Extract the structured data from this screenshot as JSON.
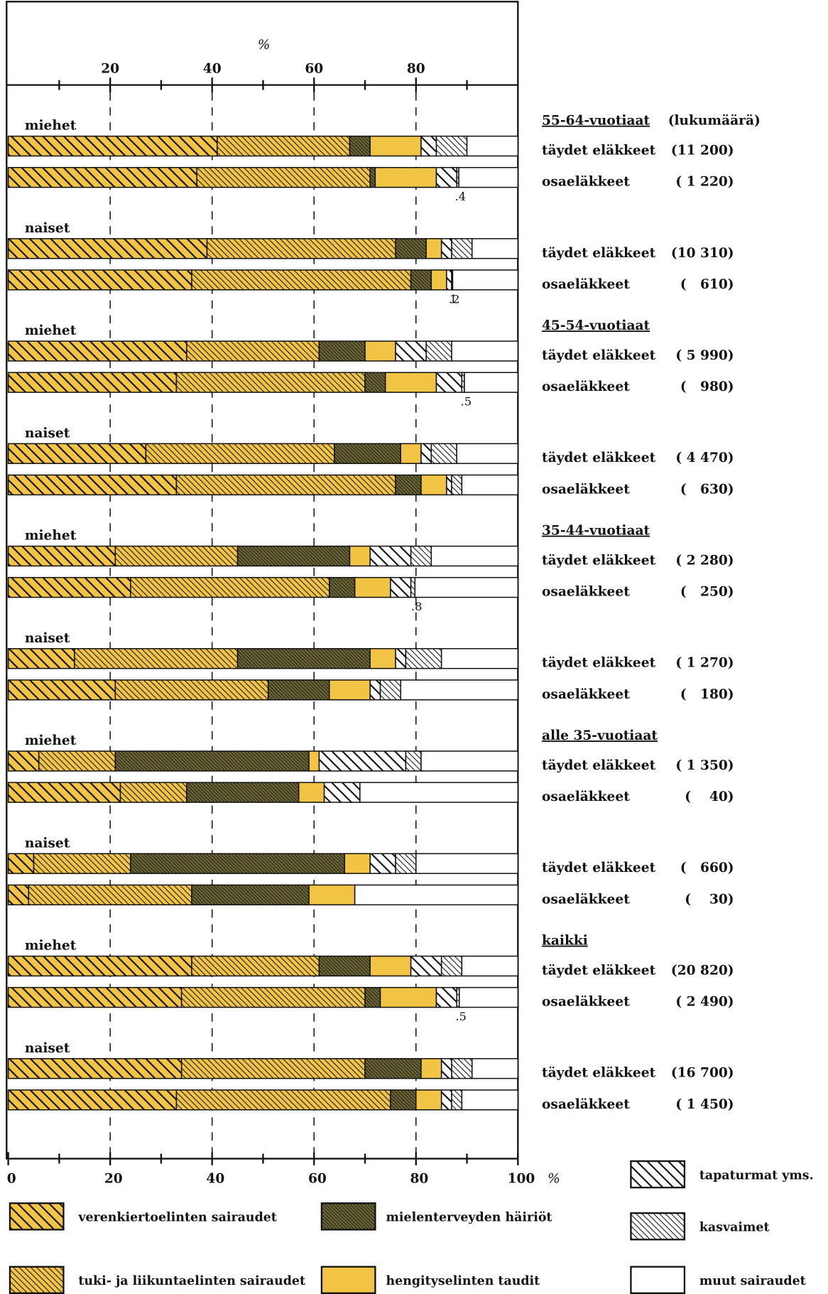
{
  "chart_data": {
    "type": "stacked-bar-horizontal",
    "top_axis_label": "%",
    "x_unit": "%",
    "xlim": [
      0,
      100
    ],
    "xticks": [
      0,
      20,
      40,
      60,
      80,
      100
    ],
    "top_xticks": [
      20,
      40,
      60,
      80
    ],
    "minor_xticks": [
      10,
      30,
      50,
      70,
      90
    ],
    "grid": true,
    "groups": [
      {
        "label": "55-64-vuotiaat",
        "note": "(lukumäärä)"
      },
      {
        "label": "45-54-vuotiaat"
      },
      {
        "label": "35-44-vuotiaat"
      },
      {
        "label": "alle 35-vuotiaat"
      },
      {
        "label": "kaikki"
      }
    ],
    "sex_labels": [
      "miehet",
      "naiset",
      "miehet",
      "naiset",
      "miehet",
      "naiset",
      "miehet",
      "naiset",
      "miehet",
      "naiset"
    ],
    "categories": [
      "täydet eläkkeet",
      "osaeläkkeet",
      "täydet eläkkeet",
      "osaeläkkeet",
      "täydet eläkkeet",
      "osaeläkkeet",
      "täydet eläkkeet",
      "osaeläkkeet",
      "täydet eläkkeet",
      "osaeläkkeet",
      "täydet eläkkeet",
      "osaeläkkeet",
      "täydet eläkkeet",
      "osaeläkkeet",
      "täydet eläkkeet",
      "osaeläkkeet",
      "täydet eläkkeet",
      "osaeläkkeet",
      "täydet eläkkeet",
      "osaeläkkeet"
    ],
    "counts": [
      "(11 200)",
      "( 1 220)",
      "(10 310)",
      "(   610)",
      "( 5 990)",
      "(   980)",
      "( 4 470)",
      "(   630)",
      "( 2 280)",
      "(   250)",
      "( 1 270)",
      "(   180)",
      "( 1 350)",
      "(    40)",
      "(   660)",
      "(    30)",
      "(20 820)",
      "( 2 490)",
      "(16 700)",
      "( 1 450)"
    ],
    "series": [
      {
        "name": "verenkiertoelinten sairaudet",
        "color": "#f2c446",
        "hatch": "coarse",
        "values": [
          41,
          37,
          39,
          36,
          35,
          33,
          27,
          33,
          21,
          24,
          13,
          21,
          6,
          22,
          5,
          4,
          36,
          34,
          34,
          33
        ]
      },
      {
        "name": "tuki- ja liikuntaelinten sairaudet",
        "color": "#f2c446",
        "hatch": "fine",
        "values": [
          26,
          34,
          37,
          43,
          26,
          37,
          37,
          43,
          24,
          39,
          32,
          30,
          15,
          13,
          19,
          32,
          25,
          36,
          36,
          42
        ]
      },
      {
        "name": "mielenterveyden häiriöt",
        "color": "#6b6434",
        "hatch": "dense",
        "values": [
          4,
          1,
          6,
          4,
          9,
          4,
          13,
          5,
          22,
          5,
          26,
          12,
          38,
          22,
          42,
          23,
          10,
          3,
          11,
          5
        ]
      },
      {
        "name": "hengityselinten taudit",
        "color": "#f2c446",
        "hatch": "none",
        "values": [
          10,
          12,
          3,
          3,
          6,
          10,
          4,
          5,
          4,
          7,
          5,
          8,
          2,
          5,
          5,
          9,
          8,
          11,
          4,
          5
        ]
      },
      {
        "name": "tapaturmat yms.",
        "color": "#ffffff",
        "hatch": "coarse",
        "values": [
          3,
          4,
          2,
          1,
          6,
          5,
          2,
          1,
          8,
          4,
          2,
          2,
          17,
          7,
          5,
          0,
          6,
          4,
          2,
          2
        ],
        "value_labels": [
          null,
          null,
          null,
          "1",
          null,
          null,
          null,
          null,
          null,
          null,
          null,
          null,
          null,
          null,
          null,
          null,
          null,
          null,
          null,
          null
        ]
      },
      {
        "name": "kasvaimet",
        "color": "#ffffff",
        "hatch": "fine",
        "values": [
          6,
          0.4,
          4,
          0.2,
          5,
          0.5,
          5,
          2,
          4,
          0.8,
          7,
          4,
          3,
          0,
          4,
          0,
          4,
          0.5,
          4,
          2
        ],
        "value_labels": [
          null,
          ".4",
          null,
          ".2",
          null,
          ".5",
          null,
          null,
          null,
          ".8",
          null,
          null,
          null,
          null,
          null,
          null,
          null,
          ".5",
          null,
          null
        ]
      },
      {
        "name": "muut sairaudet",
        "color": "#ffffff",
        "hatch": "none",
        "values": [
          10,
          11.6,
          9,
          12.8,
          13,
          10.5,
          12,
          11,
          17,
          20.2,
          15,
          23,
          19,
          31,
          20,
          32,
          11,
          11.5,
          9,
          11
        ]
      }
    ]
  }
}
